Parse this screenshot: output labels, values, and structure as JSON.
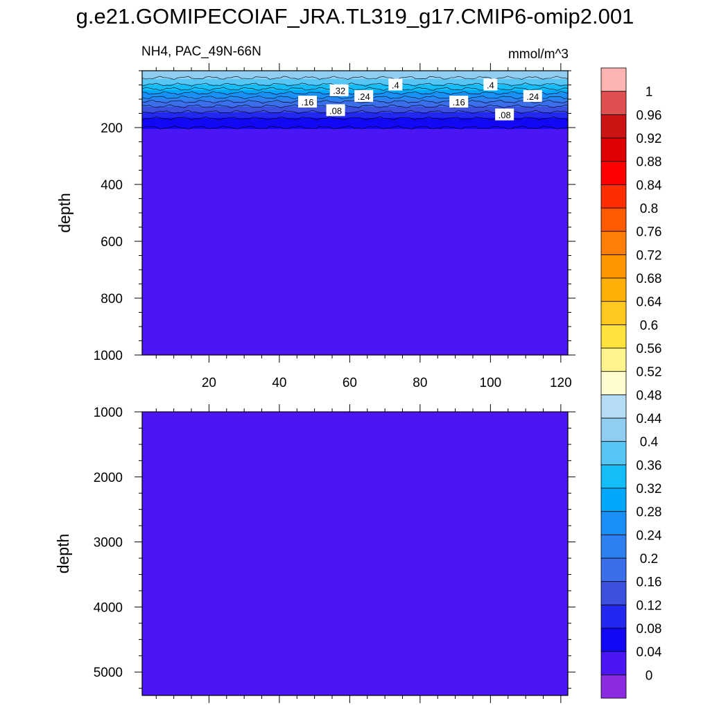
{
  "title": "g.e21.GOMIPECOIAF_JRA.TL319_g17.CMIP6-omip2.001",
  "subtitle_left": "NH4, PAC_49N-66N",
  "units": "mmol/m^3",
  "chart_data": [
    {
      "type": "heatmap",
      "panel": "upper",
      "xlabel": "",
      "ylabel": "depth",
      "xlim": [
        1,
        122
      ],
      "ylim": [
        0,
        1000
      ],
      "y_reversed": true,
      "x_ticks": [
        20,
        40,
        60,
        80,
        100,
        120
      ],
      "y_ticks": [
        200,
        400,
        600,
        800,
        1000
      ],
      "contour_labels": [
        {
          "text": ".32",
          "x": 57,
          "depth": 70
        },
        {
          "text": ".4",
          "x": 73,
          "depth": 50
        },
        {
          "text": ".24",
          "x": 64,
          "depth": 90
        },
        {
          "text": ".4",
          "x": 100,
          "depth": 50
        },
        {
          "text": ".24",
          "x": 112,
          "depth": 90
        },
        {
          "text": ".16",
          "x": 48,
          "depth": 110
        },
        {
          "text": ".16",
          "x": 91,
          "depth": 110
        },
        {
          "text": ".08",
          "x": 56,
          "depth": 140
        },
        {
          "text": ".08",
          "x": 104,
          "depth": 155
        }
      ],
      "depth_profile": [
        {
          "depth": 0,
          "value": 0.43
        },
        {
          "depth": 25,
          "value": 0.4
        },
        {
          "depth": 45,
          "value": 0.37
        },
        {
          "depth": 60,
          "value": 0.33
        },
        {
          "depth": 75,
          "value": 0.29
        },
        {
          "depth": 90,
          "value": 0.25
        },
        {
          "depth": 105,
          "value": 0.21
        },
        {
          "depth": 120,
          "value": 0.17
        },
        {
          "depth": 140,
          "value": 0.13
        },
        {
          "depth": 160,
          "value": 0.09
        },
        {
          "depth": 190,
          "value": 0.05
        },
        {
          "depth": 220,
          "value": 0.02
        },
        {
          "depth": 1000,
          "value": 0.02
        }
      ]
    },
    {
      "type": "heatmap",
      "panel": "lower",
      "xlabel": "",
      "ylabel": "depth",
      "xlim": [
        1,
        122
      ],
      "ylim": [
        1000,
        5360
      ],
      "y_reversed": true,
      "x_ticks": [
        20,
        40,
        60,
        80,
        100,
        120
      ],
      "y_ticks": [
        1000,
        2000,
        3000,
        4000,
        5000
      ],
      "uniform_value": 0.02
    }
  ],
  "colorbar": {
    "levels": [
      "0",
      "0.04",
      "0.08",
      "0.12",
      "0.16",
      "0.2",
      "0.24",
      "0.28",
      "0.32",
      "0.36",
      "0.4",
      "0.44",
      "0.48",
      "0.52",
      "0.56",
      "0.6",
      "0.64",
      "0.68",
      "0.72",
      "0.76",
      "0.8",
      "0.84",
      "0.88",
      "0.92",
      "0.96",
      "1"
    ],
    "colors": [
      "#8a2be2",
      "#4a16f5",
      "#1208f5",
      "#2228ef",
      "#3c50e0",
      "#3a6eea",
      "#2e80f0",
      "#1890f8",
      "#00a8fc",
      "#14bcf8",
      "#58c6f4",
      "#90cdf0",
      "#b4dcf4",
      "#fffdd0",
      "#fff58c",
      "#ffe23c",
      "#fec81e",
      "#feb008",
      "#fe9600",
      "#ff7e08",
      "#ff5a00",
      "#ff2e00",
      "#fe0000",
      "#de0000",
      "#cc1414",
      "#e05050",
      "#ffb4b4"
    ]
  }
}
